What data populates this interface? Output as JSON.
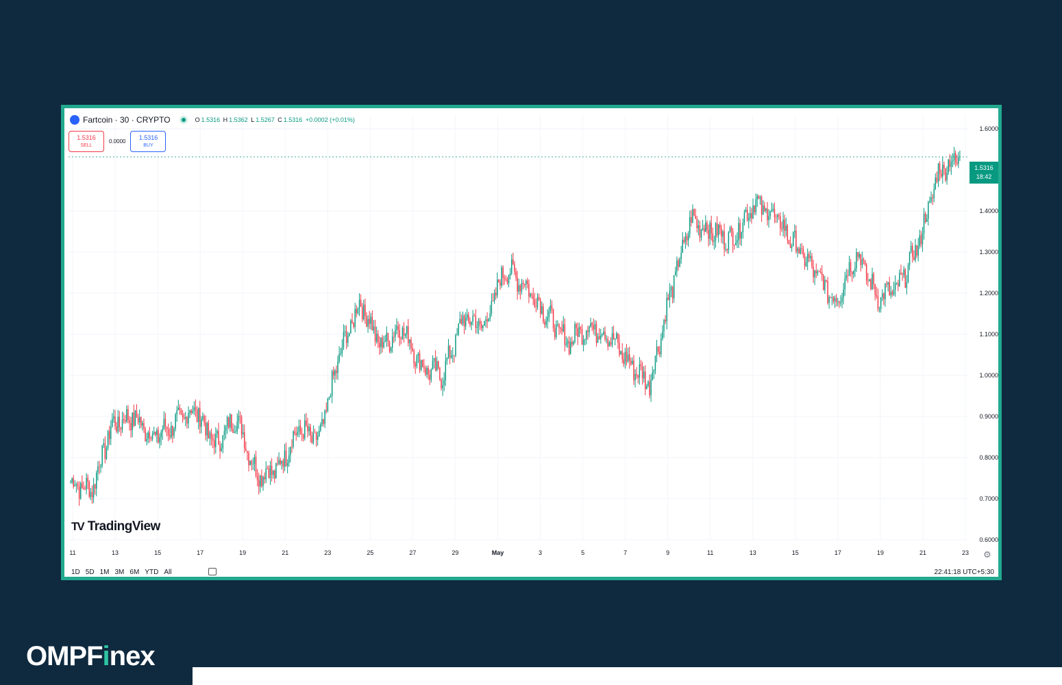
{
  "legend": {
    "symbol": "Fartcoin · 30 · CRYPTO",
    "o_label": "O",
    "o": "1.5316",
    "h_label": "H",
    "h": "1.5362",
    "l_label": "L",
    "l": "1.5267",
    "c_label": "C",
    "c": "1.5316",
    "change": "+0.0002 (+0.01%)"
  },
  "trade": {
    "sell_price": "1.5316",
    "sell_label": "SELL",
    "spread": "0.0000",
    "buy_price": "1.5316",
    "buy_label": "BUY"
  },
  "tradingview_logo": "TradingView",
  "price_tag": {
    "price": "1.5316",
    "countdown": "18:42"
  },
  "ranges": [
    "1D",
    "5D",
    "1M",
    "3M",
    "6M",
    "YTD",
    "All"
  ],
  "clock": "22:41:18 UTC+5:30",
  "brand": {
    "prefix": "OMPF",
    "highlight": "i",
    "suffix": "nex"
  },
  "colors": {
    "background": "#0f2a3f",
    "frame": "#22a98f",
    "up": "#089981",
    "down": "#f23645",
    "symbol_dot": "#2962ff"
  },
  "icons": [
    "fartcoin-symbol-icon",
    "live-status-dot-icon",
    "calendar-icon",
    "settings-gear-icon",
    "tradingview-logo-icon"
  ],
  "chart_data": {
    "type": "candlestick",
    "interval": "30",
    "y_tick_labels": [
      "1.6000",
      "1.4000",
      "1.3000",
      "1.2000",
      "1.1000",
      "1.0000",
      "0.9000",
      "0.8000",
      "0.7000",
      "0.6000"
    ],
    "ylim": [
      0.6,
      1.6
    ],
    "x_tick_labels": [
      "11",
      "13",
      "15",
      "17",
      "19",
      "21",
      "23",
      "25",
      "27",
      "29",
      "May",
      "3",
      "5",
      "7",
      "9",
      "11",
      "13",
      "15",
      "17",
      "19",
      "21",
      "23"
    ],
    "last_price": 1.5316,
    "approx_close_path": {
      "x": [
        "Apr 10",
        "Apr 11",
        "Apr 12",
        "Apr 13",
        "Apr 14",
        "Apr 15",
        "Apr 16",
        "Apr 17",
        "Apr 18",
        "Apr 19",
        "Apr 20",
        "Apr 21",
        "Apr 22",
        "Apr 23",
        "Apr 24",
        "Apr 25",
        "Apr 26",
        "Apr 27",
        "Apr 28",
        "Apr 29",
        "Apr 30",
        "May 1",
        "May 2",
        "May 3",
        "May 4",
        "May 5",
        "May 6",
        "May 7",
        "May 8",
        "May 9",
        "May 10",
        "May 11",
        "May 12",
        "May 13",
        "May 14",
        "May 15",
        "May 16",
        "May 17",
        "May 18",
        "May 19",
        "May 20",
        "May 21",
        "May 22",
        "May 23"
      ],
      "y": [
        0.74,
        0.72,
        0.88,
        0.9,
        0.85,
        0.88,
        0.92,
        0.83,
        0.9,
        0.76,
        0.77,
        0.87,
        0.84,
        1.05,
        1.18,
        1.07,
        1.12,
        1.02,
        1.0,
        1.14,
        1.12,
        1.26,
        1.22,
        1.15,
        1.08,
        1.12,
        1.1,
        1.03,
        0.98,
        1.2,
        1.38,
        1.35,
        1.33,
        1.42,
        1.39,
        1.32,
        1.25,
        1.18,
        1.3,
        1.19,
        1.21,
        1.32,
        1.5,
        1.53
      ]
    }
  }
}
